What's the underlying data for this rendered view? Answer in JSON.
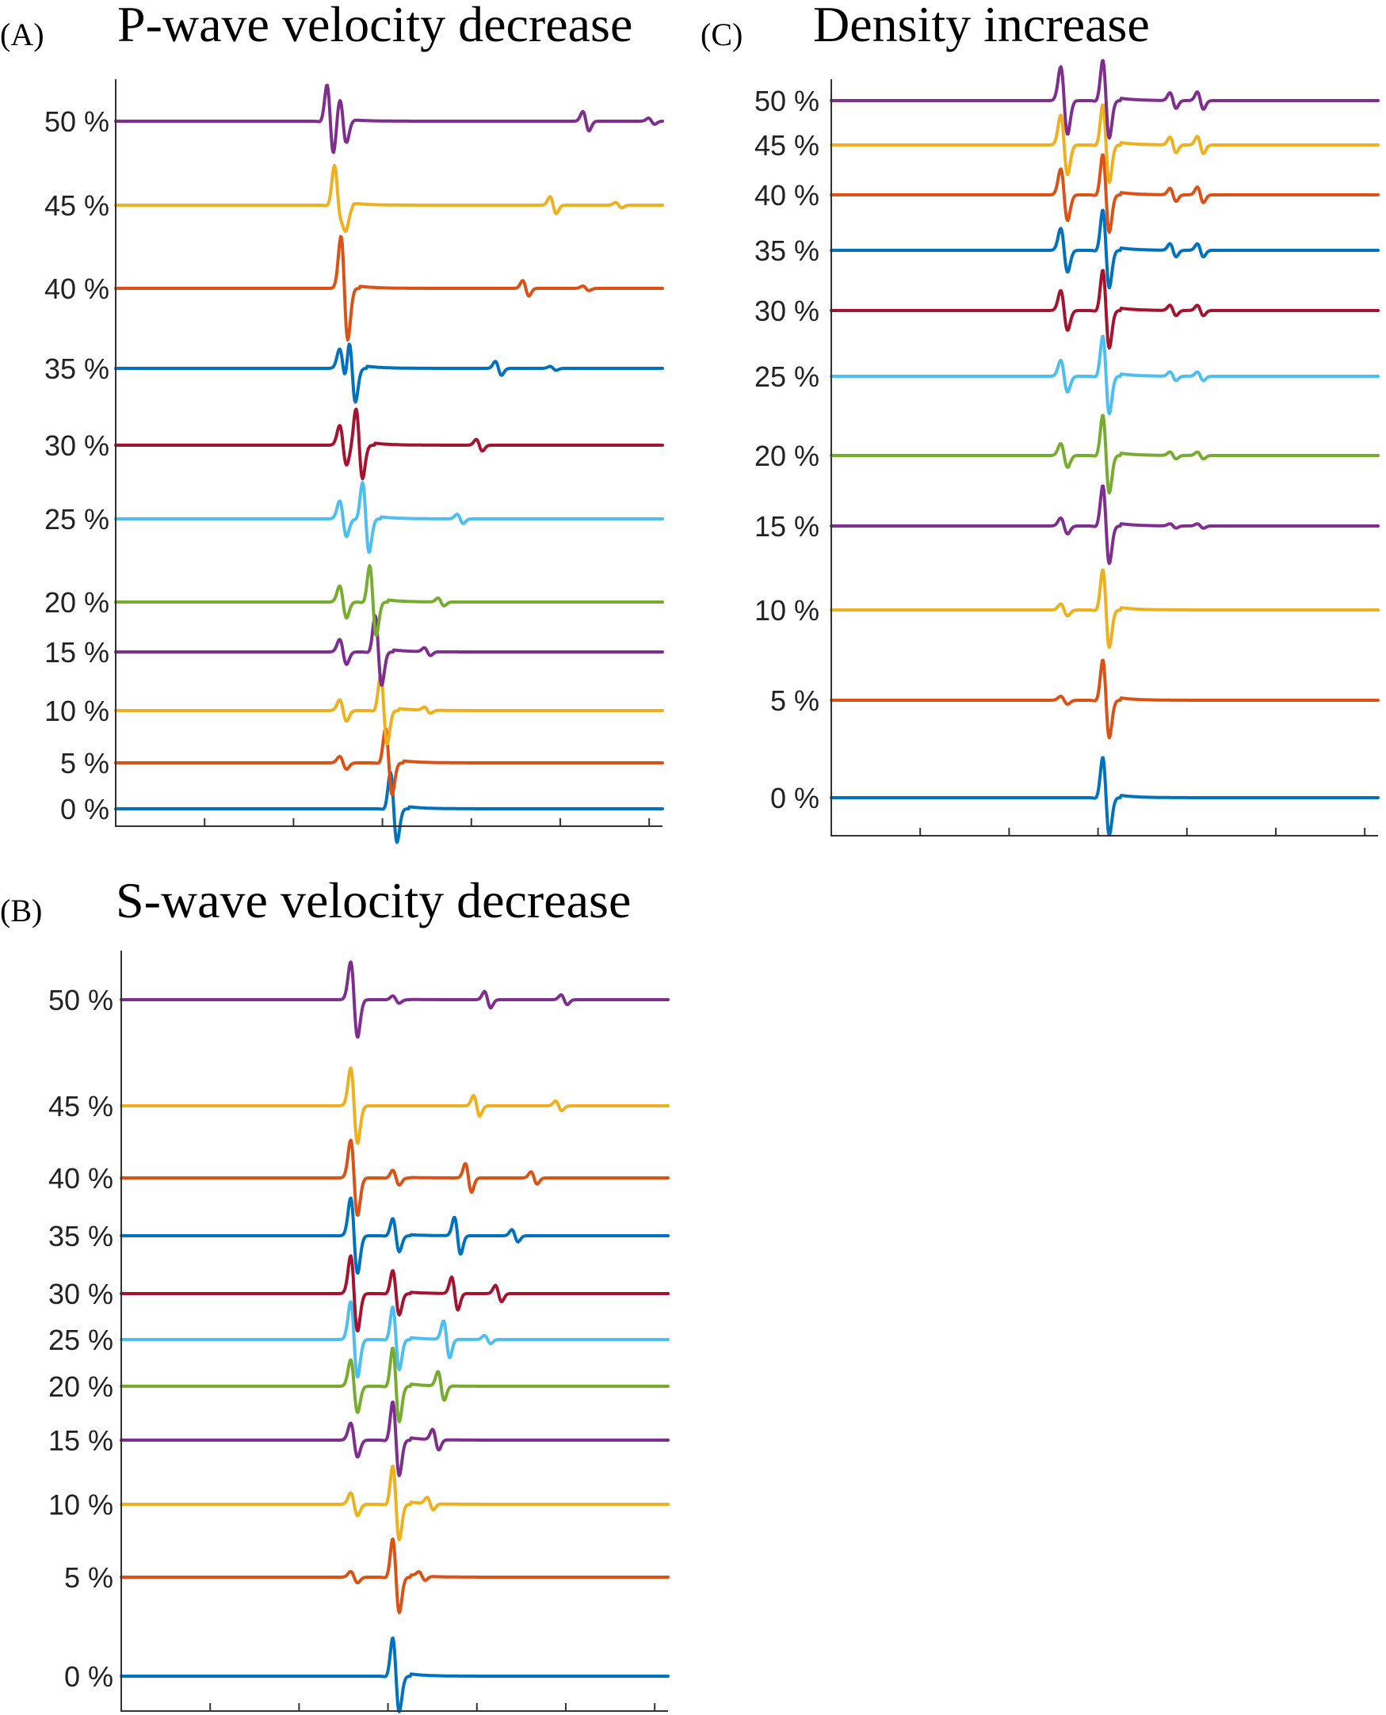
{
  "chart_data": [
    {
      "type": "line",
      "panel": "(A)",
      "title": "P-wave velocity decrease",
      "xlabel": "",
      "ylabel": "",
      "series": [
        {
          "label": "0 %",
          "color": "#0072BD",
          "direct_time": 0.506,
          "direct_amp": 1.0,
          "early_time": null,
          "early_amp": 0,
          "late": []
        },
        {
          "label": "5 %",
          "color": "#D95319",
          "direct_time": 0.497,
          "direct_amp": 0.95,
          "early_time": 0.415,
          "early_amp": 0.18,
          "late": []
        },
        {
          "label": "10 %",
          "color": "#EDB120",
          "direct_time": 0.488,
          "direct_amp": 1.0,
          "early_time": 0.415,
          "early_amp": 0.3,
          "late": [
            {
              "t": 0.57,
              "a": 0.08
            }
          ]
        },
        {
          "label": "15 %",
          "color": "#7E2F8E",
          "direct_time": 0.478,
          "direct_amp": 1.0,
          "early_time": 0.415,
          "early_amp": 0.35,
          "late": [
            {
              "t": 0.57,
              "a": 0.1
            }
          ]
        },
        {
          "label": "20 %",
          "color": "#77AC30",
          "direct_time": 0.468,
          "direct_amp": 1.0,
          "early_time": 0.415,
          "early_amp": 0.45,
          "late": [
            {
              "t": 0.595,
              "a": 0.1
            }
          ]
        },
        {
          "label": "25 %",
          "color": "#4DBEEE",
          "direct_time": 0.455,
          "direct_amp": 1.0,
          "early_time": 0.415,
          "early_amp": 0.5,
          "late": [
            {
              "t": 0.63,
              "a": 0.12
            }
          ]
        },
        {
          "label": "30 %",
          "color": "#A2142F",
          "direct_time": 0.443,
          "direct_amp": 1.0,
          "early_time": 0.415,
          "early_amp": 0.55,
          "late": [
            {
              "t": 0.665,
              "a": 0.15
            }
          ]
        },
        {
          "label": "35 %",
          "color": "#0072BD",
          "direct_time": 0.43,
          "direct_amp": 1.0,
          "early_time": 0.415,
          "early_amp": 0.55,
          "late": [
            {
              "t": 0.7,
              "a": 0.18
            },
            {
              "t": 0.8,
              "a": 0.05
            }
          ]
        },
        {
          "label": "40 %",
          "color": "#D95319",
          "direct_time": 0.417,
          "direct_amp": 1.0,
          "early_time": 0.415,
          "early_amp": 0.6,
          "late": [
            {
              "t": 0.75,
              "a": 0.2
            },
            {
              "t": 0.86,
              "a": 0.06
            }
          ]
        },
        {
          "label": "45 %",
          "color": "#EDB120",
          "direct_time": 0.403,
          "direct_amp": 1.0,
          "early_time": 0.415,
          "early_amp": 0.6,
          "late": [
            {
              "t": 0.8,
              "a": 0.22
            },
            {
              "t": 0.92,
              "a": 0.07
            }
          ]
        },
        {
          "label": "50 %",
          "color": "#7E2F8E",
          "direct_time": 0.39,
          "direct_amp": 1.0,
          "early_time": 0.415,
          "early_amp": 0.65,
          "late": [
            {
              "t": 0.86,
              "a": 0.25
            },
            {
              "t": 0.98,
              "a": 0.08
            }
          ]
        }
      ]
    },
    {
      "type": "line",
      "panel": "(B)",
      "title": "S-wave velocity decrease",
      "xlabel": "",
      "ylabel": "",
      "series": [
        {
          "label": "0 %",
          "color": "#0072BD",
          "direct_time": 0.5,
          "direct_amp": 1.0,
          "early_time": null,
          "early_amp": 0,
          "late": []
        },
        {
          "label": "5 %",
          "color": "#D95319",
          "direct_time": 0.5,
          "direct_amp": 1.0,
          "early_time": 0.425,
          "early_amp": 0.15,
          "late": [
            {
              "t": 0.55,
              "a": 0.1
            }
          ]
        },
        {
          "label": "10 %",
          "color": "#EDB120",
          "direct_time": 0.5,
          "direct_amp": 1.0,
          "early_time": 0.425,
          "early_amp": 0.3,
          "late": [
            {
              "t": 0.565,
              "a": 0.15
            }
          ]
        },
        {
          "label": "15 %",
          "color": "#7E2F8E",
          "direct_time": 0.5,
          "direct_amp": 1.0,
          "early_time": 0.425,
          "early_amp": 0.45,
          "late": [
            {
              "t": 0.575,
              "a": 0.25
            }
          ]
        },
        {
          "label": "20 %",
          "color": "#77AC30",
          "direct_time": 0.5,
          "direct_amp": 1.0,
          "early_time": 0.425,
          "early_amp": 0.7,
          "late": [
            {
              "t": 0.585,
              "a": 0.35
            }
          ]
        },
        {
          "label": "25 %",
          "color": "#4DBEEE",
          "direct_time": 0.5,
          "direct_amp": 0.85,
          "early_time": 0.425,
          "early_amp": 1.0,
          "late": [
            {
              "t": 0.595,
              "a": 0.45
            },
            {
              "t": 0.67,
              "a": 0.1
            }
          ]
        },
        {
          "label": "30 %",
          "color": "#A2142F",
          "direct_time": 0.5,
          "direct_amp": 0.6,
          "early_time": 0.425,
          "early_amp": 1.0,
          "late": [
            {
              "t": 0.61,
              "a": 0.4
            },
            {
              "t": 0.69,
              "a": 0.2
            }
          ]
        },
        {
          "label": "35 %",
          "color": "#0072BD",
          "direct_time": 0.5,
          "direct_amp": 0.45,
          "early_time": 0.425,
          "early_amp": 1.0,
          "late": [
            {
              "t": 0.615,
              "a": 0.45
            },
            {
              "t": 0.72,
              "a": 0.15
            }
          ]
        },
        {
          "label": "40 %",
          "color": "#D95319",
          "direct_time": 0.5,
          "direct_amp": 0.2,
          "early_time": 0.425,
          "early_amp": 1.0,
          "late": [
            {
              "t": 0.635,
              "a": 0.35
            },
            {
              "t": 0.755,
              "a": 0.15
            }
          ]
        },
        {
          "label": "45 %",
          "color": "#EDB120",
          "direct_time": 0.5,
          "direct_amp": 0.0,
          "early_time": 0.425,
          "early_amp": 1.0,
          "late": [
            {
              "t": 0.65,
              "a": 0.25
            },
            {
              "t": 0.8,
              "a": 0.12
            }
          ]
        },
        {
          "label": "50 %",
          "color": "#7E2F8E",
          "direct_time": 0.5,
          "direct_amp": 0.1,
          "early_time": 0.425,
          "early_amp": 1.0,
          "late": [
            {
              "t": 0.67,
              "a": 0.2
            },
            {
              "t": 0.81,
              "a": 0.12
            }
          ]
        }
      ]
    },
    {
      "type": "line",
      "panel": "(C)",
      "title": "Density increase",
      "xlabel": "",
      "ylabel": "",
      "series": [
        {
          "label": "0 %",
          "color": "#0072BD",
          "direct_time": 0.5,
          "direct_amp": 1.0,
          "early_time": null,
          "early_amp": 0,
          "late": []
        },
        {
          "label": "5 %",
          "color": "#D95319",
          "direct_time": 0.5,
          "direct_amp": 1.0,
          "early_time": 0.425,
          "early_amp": 0.1,
          "late": []
        },
        {
          "label": "10 %",
          "color": "#EDB120",
          "direct_time": 0.5,
          "direct_amp": 1.0,
          "early_time": 0.425,
          "early_amp": 0.15,
          "late": []
        },
        {
          "label": "15 %",
          "color": "#7E2F8E",
          "direct_time": 0.5,
          "direct_amp": 1.0,
          "early_time": 0.425,
          "early_amp": 0.2,
          "late": [
            {
              "t": 0.625,
              "a": 0.05
            },
            {
              "t": 0.675,
              "a": 0.05
            }
          ]
        },
        {
          "label": "20 %",
          "color": "#77AC30",
          "direct_time": 0.5,
          "direct_amp": 1.0,
          "early_time": 0.425,
          "early_amp": 0.3,
          "late": [
            {
              "t": 0.625,
              "a": 0.08
            },
            {
              "t": 0.675,
              "a": 0.08
            }
          ]
        },
        {
          "label": "25 %",
          "color": "#4DBEEE",
          "direct_time": 0.5,
          "direct_amp": 1.0,
          "early_time": 0.425,
          "early_amp": 0.4,
          "late": [
            {
              "t": 0.625,
              "a": 0.1
            },
            {
              "t": 0.675,
              "a": 0.1
            }
          ]
        },
        {
          "label": "30 %",
          "color": "#A2142F",
          "direct_time": 0.5,
          "direct_amp": 1.0,
          "early_time": 0.425,
          "early_amp": 0.5,
          "late": [
            {
              "t": 0.625,
              "a": 0.12
            },
            {
              "t": 0.675,
              "a": 0.12
            }
          ]
        },
        {
          "label": "35 %",
          "color": "#0072BD",
          "direct_time": 0.5,
          "direct_amp": 1.0,
          "early_time": 0.425,
          "early_amp": 0.55,
          "late": [
            {
              "t": 0.625,
              "a": 0.15
            },
            {
              "t": 0.675,
              "a": 0.15
            }
          ]
        },
        {
          "label": "40 %",
          "color": "#D95319",
          "direct_time": 0.5,
          "direct_amp": 1.0,
          "early_time": 0.425,
          "early_amp": 0.65,
          "late": [
            {
              "t": 0.625,
              "a": 0.15
            },
            {
              "t": 0.675,
              "a": 0.18
            }
          ]
        },
        {
          "label": "45 %",
          "color": "#EDB120",
          "direct_time": 0.5,
          "direct_amp": 1.0,
          "early_time": 0.425,
          "early_amp": 0.75,
          "late": [
            {
              "t": 0.625,
              "a": 0.18
            },
            {
              "t": 0.675,
              "a": 0.2
            }
          ]
        },
        {
          "label": "50 %",
          "color": "#7E2F8E",
          "direct_time": 0.5,
          "direct_amp": 1.0,
          "early_time": 0.425,
          "early_amp": 0.85,
          "late": [
            {
              "t": 0.625,
              "a": 0.18
            },
            {
              "t": 0.675,
              "a": 0.2
            }
          ]
        }
      ]
    }
  ]
}
